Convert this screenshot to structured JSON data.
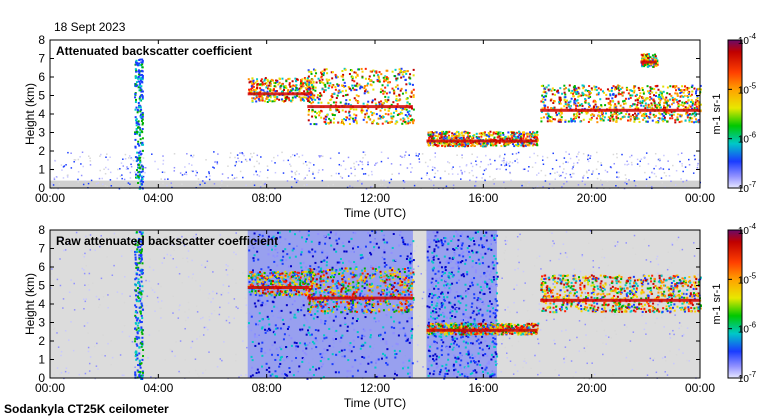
{
  "page": {
    "date": "18 Sept 2023",
    "footer": "Sodankyla CT25K ceilometer"
  },
  "chart_data": [
    {
      "type": "heatmap",
      "title": "Attenuated backscatter coefficient",
      "xlabel": "Time (UTC)",
      "ylabel": "Height (km)",
      "x_ticks": [
        "00:00",
        "04:00",
        "08:00",
        "12:00",
        "16:00",
        "20:00",
        "00:00"
      ],
      "x_tick_hours": [
        0,
        4,
        8,
        12,
        16,
        20,
        24
      ],
      "xlim_hours": [
        0,
        24
      ],
      "y_ticks": [
        "0",
        "1",
        "2",
        "3",
        "4",
        "5",
        "6",
        "7",
        "8"
      ],
      "ylim_km": [
        0,
        8
      ],
      "colorbar": {
        "label": "m-1 sr-1",
        "scale": "log",
        "ticks": [
          "10-4",
          "10-5",
          "10-6",
          "10-7"
        ],
        "range": [
          1e-07,
          0.0001
        ]
      },
      "features": [
        {
          "kind": "boundary_layer",
          "start_h": 0,
          "end_h": 24,
          "top_km": 2.0
        },
        {
          "kind": "fog_streak",
          "start_h": 3.1,
          "end_h": 3.4,
          "base_km": 0,
          "top_km": 7.0
        },
        {
          "kind": "cloud",
          "start_h": 7.3,
          "end_h": 9.7,
          "base_km": 4.7,
          "top_km": 6.0
        },
        {
          "kind": "cloud",
          "start_h": 9.5,
          "end_h": 13.4,
          "base_km": 3.5,
          "top_km": 6.5
        },
        {
          "kind": "cloud",
          "start_h": 13.9,
          "end_h": 18.0,
          "base_km": 2.3,
          "top_km": 3.1
        },
        {
          "kind": "cloud",
          "start_h": 18.1,
          "end_h": 24,
          "base_km": 3.6,
          "top_km": 5.6
        },
        {
          "kind": "cloud",
          "start_h": 21.8,
          "end_h": 22.4,
          "base_km": 6.6,
          "top_km": 7.3
        }
      ]
    },
    {
      "type": "heatmap",
      "title": "Raw attenuated backscatter coefficient",
      "xlabel": "Time (UTC)",
      "ylabel": "Height (km)",
      "x_ticks": [
        "00:00",
        "04:00",
        "08:00",
        "12:00",
        "16:00",
        "20:00",
        "00:00"
      ],
      "x_tick_hours": [
        0,
        4,
        8,
        12,
        16,
        20,
        24
      ],
      "xlim_hours": [
        0,
        24
      ],
      "y_ticks": [
        "0",
        "1",
        "2",
        "3",
        "4",
        "5",
        "6",
        "7",
        "8"
      ],
      "ylim_km": [
        0,
        8
      ],
      "colorbar": {
        "label": "m-1 sr-1",
        "scale": "log",
        "ticks": [
          "10-4",
          "10-5",
          "10-6",
          "10-7"
        ],
        "range": [
          1e-07,
          0.0001
        ]
      },
      "features": [
        {
          "kind": "noise_background",
          "start_h": 0,
          "end_h": 24
        },
        {
          "kind": "fog_streak",
          "start_h": 3.1,
          "end_h": 3.4,
          "base_km": 0,
          "top_km": 8.0
        },
        {
          "kind": "noise_block",
          "start_h": 7.3,
          "end_h": 13.4
        },
        {
          "kind": "noise_block",
          "start_h": 13.9,
          "end_h": 16.5
        },
        {
          "kind": "cloud",
          "start_h": 7.3,
          "end_h": 9.7,
          "base_km": 4.5,
          "top_km": 5.8
        },
        {
          "kind": "cloud",
          "start_h": 9.5,
          "end_h": 13.4,
          "base_km": 3.6,
          "top_km": 6.0
        },
        {
          "kind": "cloud",
          "start_h": 13.9,
          "end_h": 18.0,
          "base_km": 2.4,
          "top_km": 3.0
        },
        {
          "kind": "cloud",
          "start_h": 18.1,
          "end_h": 24,
          "base_km": 3.6,
          "top_km": 5.6
        }
      ]
    }
  ]
}
